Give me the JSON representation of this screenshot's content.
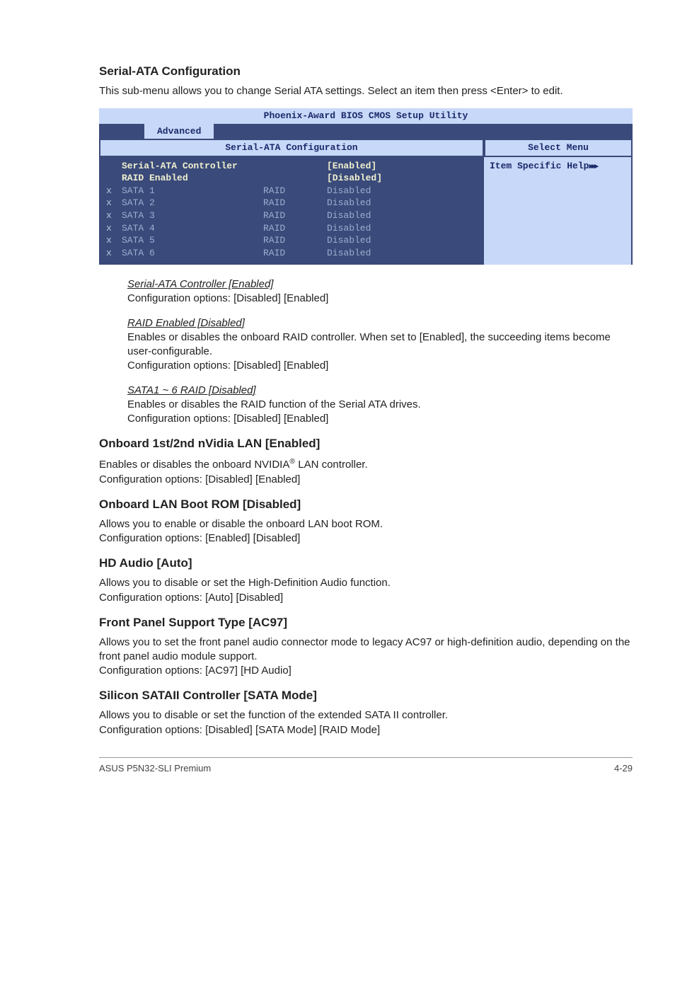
{
  "heading1": "Serial-ATA Configuration",
  "intro1": "This sub-menu allows you to change Serial ATA settings. Select an item then press <Enter> to edit.",
  "bios": {
    "titlebar": "Phoenix-Award BIOS CMOS Setup Utility",
    "tab": "Advanced",
    "panel_title": "Serial-ATA Configuration",
    "select_menu": "Select Menu",
    "help_label": "Item Specific Help",
    "rows_top": [
      {
        "label": "Serial-ATA Controller",
        "value": "[Enabled]"
      },
      {
        "label": "RAID Enabled",
        "value": "[Disabled]"
      }
    ],
    "rows": [
      {
        "x": "x",
        "label": "SATA 1",
        "mode": "RAID",
        "value": "Disabled"
      },
      {
        "x": "x",
        "label": "SATA 2",
        "mode": "RAID",
        "value": "Disabled"
      },
      {
        "x": "x",
        "label": "SATA 3",
        "mode": "RAID",
        "value": "Disabled"
      },
      {
        "x": "x",
        "label": "SATA 4",
        "mode": "RAID",
        "value": "Disabled"
      },
      {
        "x": "x",
        "label": "SATA 5",
        "mode": "RAID",
        "value": "Disabled"
      },
      {
        "x": "x",
        "label": "SATA 6",
        "mode": "RAID",
        "value": "Disabled"
      }
    ],
    "colors": {
      "banner_bg": "#c8d8f8",
      "banner_fg": "#1a2a6a",
      "panel_bg": "#3a4a7a",
      "panel_fg": "#c8d8f8",
      "dim_fg": "#9caed0",
      "enabled_fg": "#f0f0d0"
    }
  },
  "sub1_h": "Serial-ATA Controller [Enabled]",
  "sub1_t": "Configuration options: [Disabled] [Enabled]",
  "sub2_h": "RAID Enabled [Disabled]",
  "sub2_t1": "Enables or disables the onboard RAID controller. When set to [Enabled], the succeeding items become user-configurable.",
  "sub2_t2": "Configuration options: [Disabled] [Enabled]",
  "sub3_h": "SATA1 ~ 6 RAID [Disabled]",
  "sub3_t1": "Enables or disables the RAID function of the Serial ATA drives.",
  "sub3_t2": "Configuration options: [Disabled] [Enabled]",
  "h2": "Onboard 1st/2nd nVidia LAN [Enabled]",
  "h2_t1a": "Enables or disables the onboard NVIDIA",
  "h2_t1b": " LAN controller.",
  "h2_t2": "Configuration options: [Disabled] [Enabled]",
  "h3": "Onboard LAN Boot ROM [Disabled]",
  "h3_t1": "Allows you to enable or disable the onboard LAN boot ROM.",
  "h3_t2": "Configuration options: [Enabled] [Disabled]",
  "h4": "HD Audio [Auto]",
  "h4_t1": "Allows you to disable or set the High-Definition Audio function.",
  "h4_t2": "Configuration options: [Auto] [Disabled]",
  "h5": "Front Panel Support Type [AC97]",
  "h5_t1": "Allows you to set the front panel audio connector mode to legacy AC97 or high-definition audio, depending on the front panel audio module support.",
  "h5_t2": "Configuration options: [AC97] [HD Audio]",
  "h6": "Silicon SATAII Controller [SATA Mode]",
  "h6_t1": "Allows you to disable or set the function of the extended SATA II controller.",
  "h6_t2": "Configuration options: [Disabled] [SATA Mode] [RAID Mode]",
  "footer_left": "ASUS P5N32-SLI Premium",
  "footer_right": "4-29"
}
